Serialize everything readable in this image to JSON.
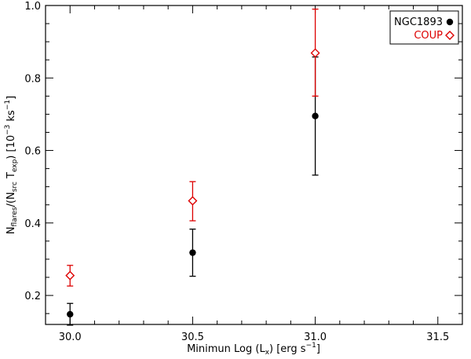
{
  "chart_data": {
    "type": "scatter",
    "xlabel": {
      "pre": "Minimun Log (L",
      "sub": "x",
      "post": ") [erg s",
      "sup": "−1",
      "end": "]"
    },
    "ylabel": {
      "n": "N",
      "n_sub": "flares",
      "mid": "/(N",
      "src_sub": "src",
      "t": " T",
      "exp_sub": "exp",
      "post": ") [10",
      "exp_sup": "−3",
      "unit": " ks",
      "unit_sup": "−1",
      "end": "]"
    },
    "xlim": [
      29.9,
      31.6
    ],
    "ylim": [
      0.12,
      1.0
    ],
    "xticks": [
      30.0,
      30.5,
      31.0,
      31.5
    ],
    "xtick_labels": [
      "30.0",
      "30.5",
      "31.0",
      "31.5"
    ],
    "yticks": [
      0.2,
      0.4,
      0.6,
      0.8,
      1.0
    ],
    "ytick_labels": [
      "0.2",
      "0.4",
      "0.6",
      "0.8",
      "1.0"
    ],
    "legend_position": "top-right",
    "series": [
      {
        "name": "NGC1893",
        "color": "#000000",
        "marker": "filled-circle",
        "points": [
          {
            "x": 30.0,
            "y": 0.148,
            "err_low": 0.118,
            "err_high": 0.178
          },
          {
            "x": 30.5,
            "y": 0.318,
            "err_low": 0.253,
            "err_high": 0.383
          },
          {
            "x": 31.0,
            "y": 0.695,
            "err_low": 0.532,
            "err_high": 0.858
          }
        ]
      },
      {
        "name": "COUP",
        "color": "#dd0000",
        "marker": "open-diamond",
        "points": [
          {
            "x": 30.0,
            "y": 0.255,
            "err_low": 0.226,
            "err_high": 0.283
          },
          {
            "x": 30.5,
            "y": 0.461,
            "err_low": 0.406,
            "err_high": 0.514
          },
          {
            "x": 31.0,
            "y": 0.869,
            "err_low": 0.75,
            "err_high": 0.99
          }
        ]
      }
    ]
  }
}
